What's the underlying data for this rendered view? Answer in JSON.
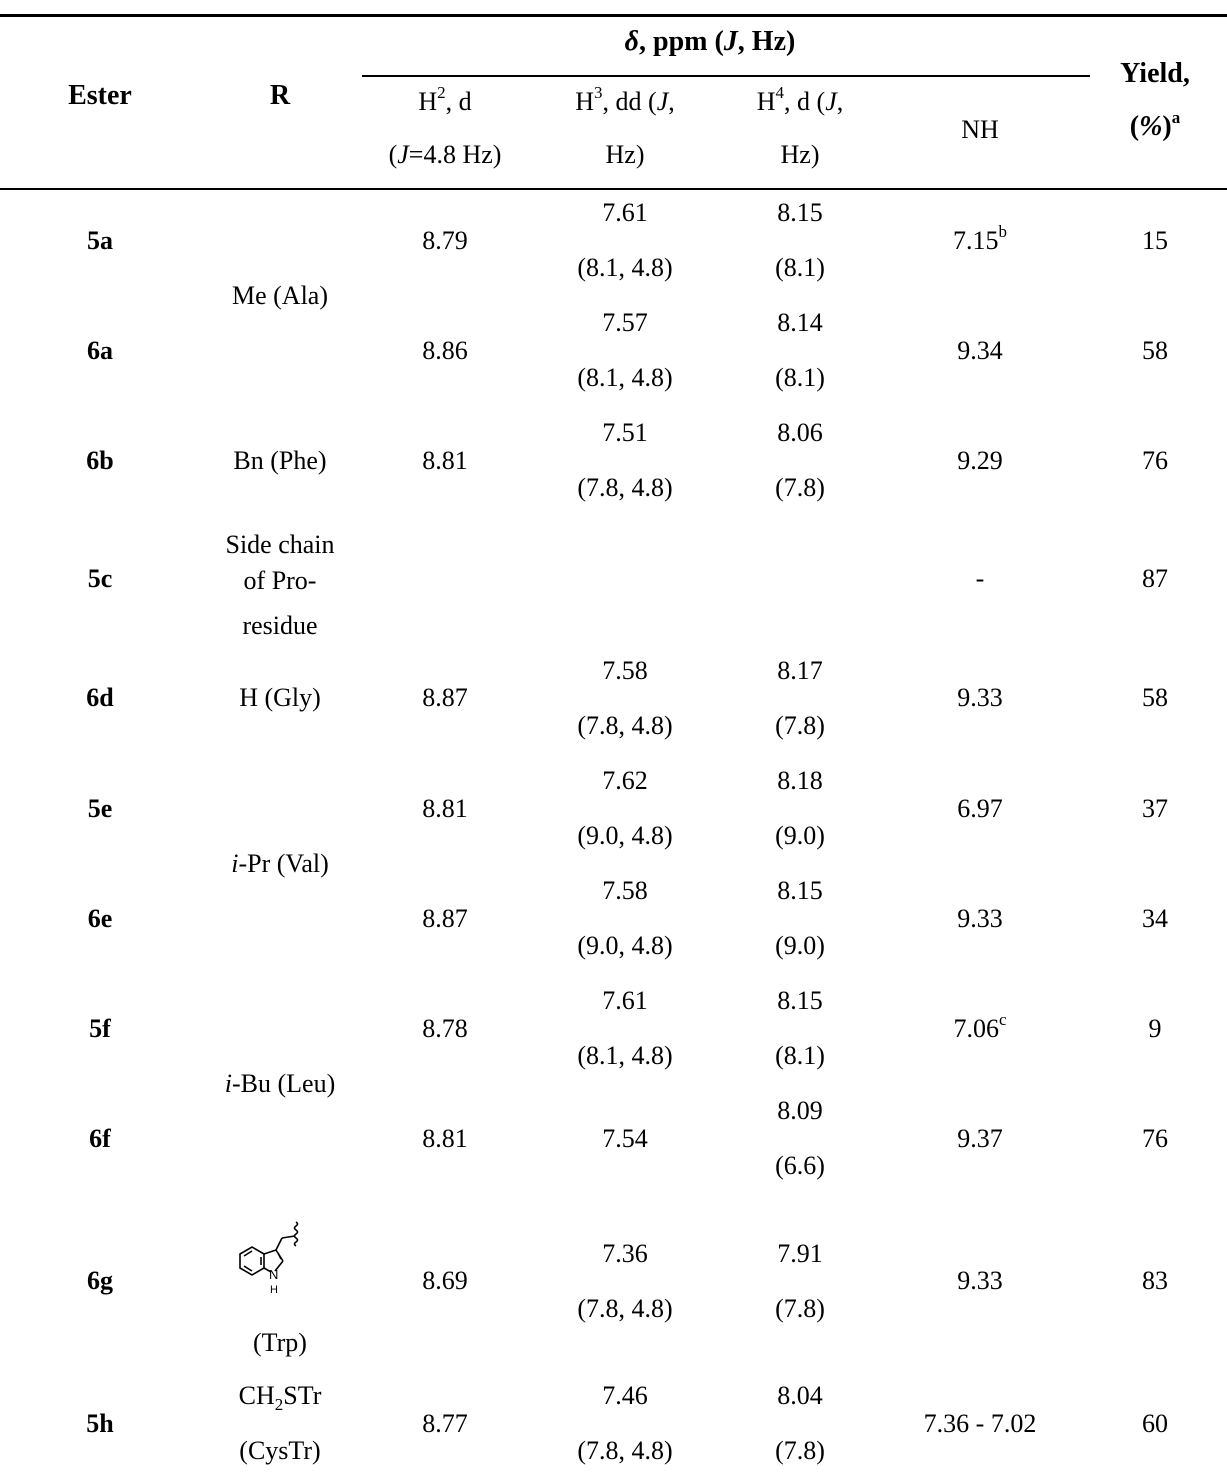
{
  "header": {
    "group_label": "δ, ppm (J, Hz)",
    "ester": "Ester",
    "r": "R",
    "h2_line1": "H2, d",
    "h2_line2": "(J=4.8 Hz)",
    "h3_line1": "H3, dd (J,",
    "h3_line2": "Hz)",
    "h4_line1": "H4, d (J,",
    "h4_line2": "Hz)",
    "nh": "NH",
    "yield_line1": "Yield,",
    "yield_line2": "(%)a"
  },
  "rows": [
    {
      "ester": "5a",
      "h2": "8.79",
      "h3": "7.61",
      "h3j": "(8.1, 4.8)",
      "h4": "8.15",
      "h4j": "(8.1)",
      "nh": "7.15b",
      "yield": "15"
    },
    {
      "ester": "6a",
      "h2": "8.86",
      "h3": "7.57",
      "h3j": "(8.1, 4.8)",
      "h4": "8.14",
      "h4j": "(8.1)",
      "nh": "9.34",
      "yield": "58"
    },
    {
      "ester": "6b",
      "r": "Bn (Phe)",
      "h2": "8.81",
      "h3": "7.51",
      "h3j": "(7.8, 4.8)",
      "h4": "8.06",
      "h4j": "(7.8)",
      "nh": "9.29",
      "yield": "76"
    },
    {
      "ester": "5c",
      "r_lines": [
        "Side chain",
        "of Pro-",
        "residue"
      ],
      "nh": "-",
      "yield": "87"
    },
    {
      "ester": "6d",
      "r": "H (Gly)",
      "h2": "8.87",
      "h3": "7.58",
      "h3j": "(7.8, 4.8)",
      "h4": "8.17",
      "h4j": "(7.8)",
      "nh": "9.33",
      "yield": "58"
    },
    {
      "ester": "5e",
      "h2": "8.81",
      "h3": "7.62",
      "h3j": "(9.0, 4.8)",
      "h4": "8.18",
      "h4j": "(9.0)",
      "nh": "6.97",
      "yield": "37"
    },
    {
      "ester": "6e",
      "h2": "8.87",
      "h3": "7.58",
      "h3j": "(9.0, 4.8)",
      "h4": "8.15",
      "h4j": "(9.0)",
      "nh": "9.33",
      "yield": "34"
    },
    {
      "ester": "5f",
      "h2": "8.78",
      "h3": "7.61",
      "h3j": "(8.1, 4.8)",
      "h4": "8.15",
      "h4j": "(8.1)",
      "nh": "7.06c",
      "yield": "9"
    },
    {
      "ester": "6f",
      "h2": "8.81",
      "h3": "7.54",
      "h4": "8.09",
      "h4j": "(6.6)",
      "nh": "9.37",
      "yield": "76"
    },
    {
      "ester": "6g",
      "r": "(Trp)",
      "h2": "8.69",
      "h3": "7.36",
      "h3j": "(7.8, 4.8)",
      "h4": "7.91",
      "h4j": "(7.8)",
      "nh": "9.33",
      "yield": "83"
    },
    {
      "ester": "5h",
      "r_line1": "CH2STr",
      "r_line2": "(CysTr)",
      "h2": "8.77",
      "h3": "7.46",
      "h3j": "(7.8, 4.8)",
      "h4": "8.04",
      "h4j": "(7.8)",
      "nh": "7.36 - 7.02",
      "yield": "60"
    }
  ],
  "shared_r": {
    "ala": "Me (Ala)",
    "val": "i-Pr (Val)",
    "leu": "i-Bu (Leu)"
  },
  "indole_nh_label": "H"
}
